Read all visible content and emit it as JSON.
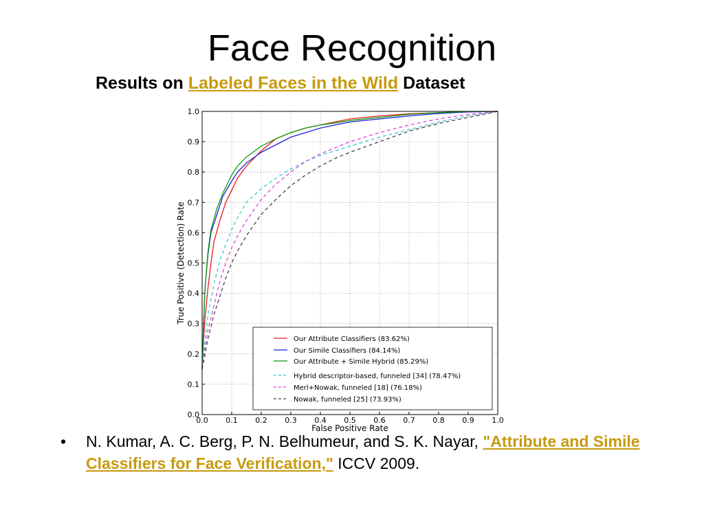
{
  "slide": {
    "title": "Face Recognition",
    "subtitle_prefix": "Results on ",
    "subtitle_link": "Labeled Faces in the Wild",
    "subtitle_suffix": " Dataset",
    "bullet_char": "•",
    "citation_prefix": "N. Kumar, A. C. Berg, P. N. Belhumeur, and S. K. Nayar, ",
    "citation_link": "\"Attribute and Simile Classifiers for Face Verification,\"",
    "citation_suffix": " ICCV 2009.",
    "link_color": "#c79a0e"
  },
  "chart_data": {
    "type": "line",
    "title": "",
    "xlabel": "False Positive Rate",
    "ylabel": "True Positive (Detection) Rate",
    "xlim": [
      0.0,
      1.0
    ],
    "ylim": [
      0.0,
      1.0
    ],
    "xticks": [
      "0.0",
      "0.1",
      "0.2",
      "0.3",
      "0.4",
      "0.5",
      "0.6",
      "0.7",
      "0.8",
      "0.9",
      "1.0"
    ],
    "yticks": [
      "0.0",
      "0.1",
      "0.2",
      "0.3",
      "0.4",
      "0.5",
      "0.6",
      "0.7",
      "0.8",
      "0.9",
      "1.0"
    ],
    "grid": true,
    "legend_position": "bottom-right",
    "series": [
      {
        "name": "Our Attribute Classifiers (83.62%)",
        "color": "#e41a1c",
        "dash": "solid",
        "points": [
          [
            0,
            0.15
          ],
          [
            0.005,
            0.25
          ],
          [
            0.01,
            0.32
          ],
          [
            0.02,
            0.42
          ],
          [
            0.03,
            0.5
          ],
          [
            0.04,
            0.57
          ],
          [
            0.06,
            0.64
          ],
          [
            0.08,
            0.7
          ],
          [
            0.1,
            0.74
          ],
          [
            0.12,
            0.78
          ],
          [
            0.15,
            0.82
          ],
          [
            0.2,
            0.87
          ],
          [
            0.25,
            0.91
          ],
          [
            0.3,
            0.93
          ],
          [
            0.35,
            0.945
          ],
          [
            0.4,
            0.955
          ],
          [
            0.45,
            0.965
          ],
          [
            0.5,
            0.975
          ],
          [
            0.6,
            0.985
          ],
          [
            0.7,
            0.992
          ],
          [
            0.8,
            0.996
          ],
          [
            0.9,
            0.999
          ],
          [
            1.0,
            1.0
          ]
        ]
      },
      {
        "name": "Our Simile Classifiers (84.14%)",
        "color": "#1f1fd8",
        "dash": "solid",
        "points": [
          [
            0,
            0.15
          ],
          [
            0.005,
            0.3
          ],
          [
            0.01,
            0.42
          ],
          [
            0.02,
            0.53
          ],
          [
            0.03,
            0.6
          ],
          [
            0.05,
            0.66
          ],
          [
            0.07,
            0.72
          ],
          [
            0.1,
            0.77
          ],
          [
            0.12,
            0.8
          ],
          [
            0.15,
            0.83
          ],
          [
            0.2,
            0.865
          ],
          [
            0.25,
            0.89
          ],
          [
            0.3,
            0.915
          ],
          [
            0.35,
            0.93
          ],
          [
            0.4,
            0.945
          ],
          [
            0.45,
            0.955
          ],
          [
            0.5,
            0.965
          ],
          [
            0.6,
            0.975
          ],
          [
            0.7,
            0.985
          ],
          [
            0.8,
            0.993
          ],
          [
            0.9,
            0.998
          ],
          [
            1.0,
            1.0
          ]
        ]
      },
      {
        "name": "Our Attribute + Simile Hybrid (85.29%)",
        "color": "#119911",
        "dash": "solid",
        "points": [
          [
            0,
            0.15
          ],
          [
            0.005,
            0.3
          ],
          [
            0.01,
            0.42
          ],
          [
            0.02,
            0.54
          ],
          [
            0.03,
            0.61
          ],
          [
            0.05,
            0.68
          ],
          [
            0.07,
            0.73
          ],
          [
            0.1,
            0.79
          ],
          [
            0.12,
            0.82
          ],
          [
            0.15,
            0.85
          ],
          [
            0.2,
            0.885
          ],
          [
            0.25,
            0.91
          ],
          [
            0.3,
            0.93
          ],
          [
            0.35,
            0.945
          ],
          [
            0.4,
            0.955
          ],
          [
            0.45,
            0.962
          ],
          [
            0.5,
            0.97
          ],
          [
            0.6,
            0.98
          ],
          [
            0.7,
            0.99
          ],
          [
            0.8,
            0.996
          ],
          [
            0.9,
            0.999
          ],
          [
            1.0,
            1.0
          ]
        ]
      },
      {
        "name": "Hybrid descriptor-based, funneled [34] (78.47%)",
        "color": "#33cccc",
        "dash": "5,4",
        "points": [
          [
            0,
            0.15
          ],
          [
            0.01,
            0.25
          ],
          [
            0.02,
            0.33
          ],
          [
            0.04,
            0.43
          ],
          [
            0.06,
            0.51
          ],
          [
            0.08,
            0.56
          ],
          [
            0.1,
            0.61
          ],
          [
            0.12,
            0.65
          ],
          [
            0.15,
            0.7
          ],
          [
            0.2,
            0.745
          ],
          [
            0.25,
            0.78
          ],
          [
            0.3,
            0.81
          ],
          [
            0.35,
            0.835
          ],
          [
            0.4,
            0.855
          ],
          [
            0.45,
            0.87
          ],
          [
            0.5,
            0.885
          ],
          [
            0.6,
            0.915
          ],
          [
            0.7,
            0.94
          ],
          [
            0.8,
            0.965
          ],
          [
            0.9,
            0.985
          ],
          [
            1.0,
            1.0
          ]
        ]
      },
      {
        "name": "Merl+Nowak, funneled [18] (76.18%)",
        "color": "#dd44dd",
        "dash": "5,4",
        "points": [
          [
            0,
            0.15
          ],
          [
            0.01,
            0.22
          ],
          [
            0.02,
            0.28
          ],
          [
            0.04,
            0.36
          ],
          [
            0.06,
            0.44
          ],
          [
            0.08,
            0.5
          ],
          [
            0.1,
            0.55
          ],
          [
            0.12,
            0.59
          ],
          [
            0.15,
            0.64
          ],
          [
            0.2,
            0.71
          ],
          [
            0.25,
            0.76
          ],
          [
            0.3,
            0.8
          ],
          [
            0.35,
            0.835
          ],
          [
            0.4,
            0.86
          ],
          [
            0.45,
            0.88
          ],
          [
            0.5,
            0.9
          ],
          [
            0.6,
            0.93
          ],
          [
            0.7,
            0.955
          ],
          [
            0.8,
            0.975
          ],
          [
            0.9,
            0.99
          ],
          [
            1.0,
            1.0
          ]
        ]
      },
      {
        "name": "Nowak, funneled [25] (73.93%)",
        "color": "#444444",
        "dash": "5,4",
        "points": [
          [
            0,
            0.15
          ],
          [
            0.01,
            0.2
          ],
          [
            0.02,
            0.25
          ],
          [
            0.04,
            0.33
          ],
          [
            0.06,
            0.39
          ],
          [
            0.08,
            0.45
          ],
          [
            0.1,
            0.5
          ],
          [
            0.12,
            0.54
          ],
          [
            0.15,
            0.59
          ],
          [
            0.2,
            0.66
          ],
          [
            0.25,
            0.71
          ],
          [
            0.3,
            0.755
          ],
          [
            0.35,
            0.79
          ],
          [
            0.4,
            0.82
          ],
          [
            0.45,
            0.845
          ],
          [
            0.5,
            0.865
          ],
          [
            0.6,
            0.9
          ],
          [
            0.7,
            0.935
          ],
          [
            0.8,
            0.96
          ],
          [
            0.9,
            0.98
          ],
          [
            1.0,
            1.0
          ]
        ]
      }
    ]
  }
}
